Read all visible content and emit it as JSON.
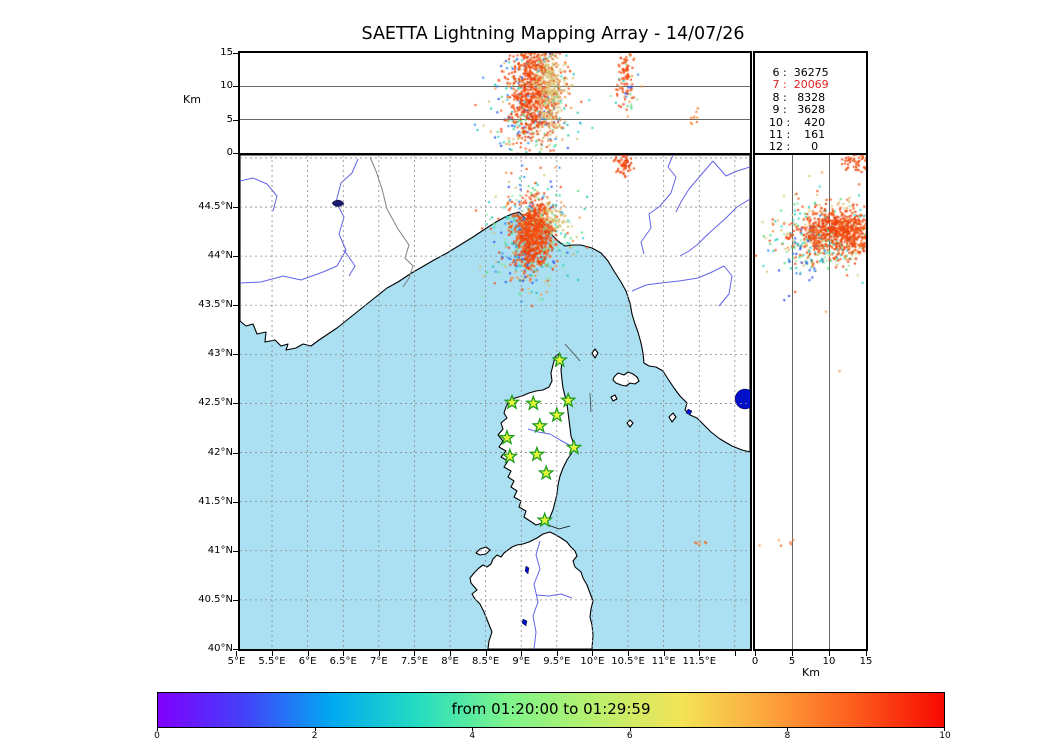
{
  "title": "SAETTA Lightning Mapping Array - 14/07/26",
  "axes": {
    "alt_axis_label": "Km",
    "alt_ticks": [
      "15",
      "10",
      "5",
      "0"
    ],
    "lat_ticks": [
      "44.5°N",
      "44°N",
      "43.5°N",
      "43°N",
      "42.5°N",
      "42°N",
      "41.5°N",
      "41°N",
      "40.5°N",
      "40°N"
    ],
    "lon_ticks": [
      "5°E",
      "5.5°E",
      "6°E",
      "6.5°E",
      "7°E",
      "7.5°E",
      "8°E",
      "8.5°E",
      "9°E",
      "9.5°E",
      "10°E",
      "10.5°E",
      "11°E",
      "11.5°E"
    ],
    "right_alt_ticks": [
      "0",
      "5",
      "10",
      "15"
    ],
    "right_alt_label": "Km"
  },
  "stats_panel": {
    "rows": [
      {
        "level": "6",
        "count": "36275"
      },
      {
        "level": "7",
        "count": "20069"
      },
      {
        "level": "8",
        "count": "8328"
      },
      {
        "level": "9",
        "count": "3628"
      },
      {
        "level": "10",
        "count": "420"
      },
      {
        "level": "11",
        "count": "161"
      },
      {
        "level": "12",
        "count": "0"
      }
    ],
    "highlighted_level": "7",
    "highlight_color": "#e32222",
    "text_color": "#000000"
  },
  "colorbar": {
    "label": "from 01:20:00 to 01:29:59",
    "ticks": [
      "0",
      "2",
      "4",
      "6",
      "8",
      "10"
    ],
    "gradient": [
      "#8000ff",
      "#4343fa",
      "#00aaf0",
      "#27ddc0",
      "#7df48b",
      "#b9f06e",
      "#f3e356",
      "#fda43c",
      "#fd5a1c",
      "#f70800"
    ]
  },
  "map_colors": {
    "sea": "#abe0f2",
    "land": "#ffffff",
    "coast": "#000000",
    "river": "#6464e8",
    "lake": "#0010c8",
    "grid": "#8a8a8a",
    "country_border": "#808080",
    "station_fill": "#e4f53a",
    "station_edge": "#1f9e1f"
  },
  "chart_data": {
    "type": "scatter",
    "figure": "Lightning mapping composite: altitude vs longitude (top), lon/lat map (main), altitude vs latitude (right)",
    "time_window": {
      "from": "01:20:00",
      "to": "01:29:59"
    },
    "colorbar_scale": [
      0,
      10
    ],
    "top_panel": {
      "xlabel_units": "deg E",
      "ylabel": "Km",
      "x_range": [
        5.05,
        12.21
      ],
      "y_range": [
        0,
        15
      ],
      "gridlines_alt_km": [
        5,
        10
      ]
    },
    "map_panel": {
      "lon_range_E": [
        5.05,
        12.21
      ],
      "lat_range_N": [
        40.0,
        45.03
      ],
      "grid_step_deg": 0.5
    },
    "right_panel": {
      "xlabel": "Km",
      "x_range": [
        0,
        15
      ],
      "lat_range_N": [
        40.0,
        45.03
      ],
      "gridlines_alt_km": [
        5,
        10
      ]
    },
    "source_counts_by_level": {
      "6": 36275,
      "7": 20069,
      "8": 8328,
      "9": 3628,
      "10": 420,
      "11": 161,
      "12": 0
    },
    "stations_lon_lat": [
      [
        9.54,
        42.94
      ],
      [
        8.87,
        42.51
      ],
      [
        9.17,
        42.5
      ],
      [
        9.66,
        42.53
      ],
      [
        9.5,
        42.38
      ],
      [
        9.26,
        42.27
      ],
      [
        8.8,
        42.15
      ],
      [
        9.74,
        42.05
      ],
      [
        9.22,
        41.98
      ],
      [
        8.84,
        41.96
      ],
      [
        9.35,
        41.79
      ],
      [
        9.33,
        41.31
      ]
    ],
    "palettes": {
      "core": [
        "#f3500e",
        "#ee4009",
        "#fa5f1c",
        "#e8380a",
        "#f64c10"
      ],
      "tan": [
        "#d6c170",
        "#cdb75e",
        "#e0cd86",
        "#d8c478"
      ],
      "mix": [
        "#30d5c8",
        "#52dd7a",
        "#2b50ee",
        "#97e8a9",
        "#f79240",
        "#f04a0e",
        "#d6c170",
        "#19c3b1",
        "#2e8cf0"
      ],
      "mixg": [
        "#52dd7a",
        "#97e8a9",
        "#d6c170",
        "#30d5c8",
        "#f79240",
        "#f04a0e",
        "#f3500e",
        "#e0cd86"
      ],
      "orange": [
        "#f79240",
        "#fb7a28",
        "#f4611a"
      ]
    },
    "clusters": [
      {
        "panel": "top",
        "x": 9.18,
        "sx": 0.3,
        "y": 7.8,
        "sy": 5.0,
        "n": 330,
        "palette": "mix"
      },
      {
        "panel": "top",
        "x": 9.15,
        "sx": 0.2,
        "y": 4.8,
        "sy": 1.3,
        "n": 45,
        "palette": "mix"
      },
      {
        "panel": "top",
        "x": 9.15,
        "sx": 0.185,
        "y": 9.6,
        "sy": 3.9,
        "n": 700,
        "palette": "core"
      },
      {
        "panel": "top",
        "x": 9.38,
        "sx": 0.1,
        "y": 10.3,
        "sy": 3.3,
        "n": 260,
        "palette": "tan"
      },
      {
        "panel": "top",
        "x": 10.45,
        "sx": 0.09,
        "y": 10.6,
        "sy": 2.6,
        "n": 30,
        "palette": "mix"
      },
      {
        "panel": "top",
        "x": 10.45,
        "sx": 0.055,
        "y": 11.8,
        "sy": 2.3,
        "n": 80,
        "palette": "core"
      },
      {
        "panel": "top",
        "x": 11.45,
        "sx": 0.05,
        "y": 5.3,
        "sy": 0.9,
        "n": 9,
        "palette": "orange"
      },
      {
        "panel": "map",
        "x": 9.15,
        "sx": 0.3,
        "y": 44.22,
        "sy": 0.28,
        "n": 420,
        "palette": "mix"
      },
      {
        "panel": "map",
        "x": 9.12,
        "sx": 0.14,
        "y": 43.95,
        "sy": 0.22,
        "n": 60,
        "palette": "mix"
      },
      {
        "panel": "map",
        "x": 9.32,
        "sx": 0.12,
        "y": 44.36,
        "sy": 0.1,
        "n": 160,
        "palette": "tan"
      },
      {
        "panel": "map",
        "x": 9.15,
        "sx": 0.13,
        "y": 44.25,
        "sy": 0.16,
        "n": 650,
        "palette": "core"
      },
      {
        "panel": "map",
        "x": 10.43,
        "sx": 0.075,
        "y": 44.95,
        "sy": 0.07,
        "n": 65,
        "palette": "core"
      },
      {
        "panel": "map",
        "x": 11.51,
        "sx": 0.05,
        "y": 41.09,
        "sy": 0.025,
        "n": 6,
        "palette": "orange"
      },
      {
        "panel": "right",
        "x": 10.8,
        "sx": 4.3,
        "y": 44.24,
        "sy": 0.19,
        "n": 400,
        "palette": "mixg"
      },
      {
        "panel": "right",
        "x": 7.4,
        "sx": 2.2,
        "y": 44.1,
        "sy": 0.15,
        "n": 130,
        "palette": "mix"
      },
      {
        "panel": "right",
        "x": 8.0,
        "sx": 5.0,
        "y": 43.8,
        "sy": 0.35,
        "n": 14,
        "palette": "mix"
      },
      {
        "panel": "right",
        "x": 11.5,
        "sx": 3.0,
        "y": 44.26,
        "sy": 0.12,
        "n": 650,
        "palette": "core"
      },
      {
        "panel": "right",
        "x": 13.7,
        "sx": 1.3,
        "y": 44.96,
        "sy": 0.055,
        "n": 70,
        "palette": "core"
      },
      {
        "panel": "right",
        "x": 4.0,
        "sx": 1.3,
        "y": 41.09,
        "sy": 0.03,
        "n": 6,
        "palette": "orange"
      }
    ]
  }
}
